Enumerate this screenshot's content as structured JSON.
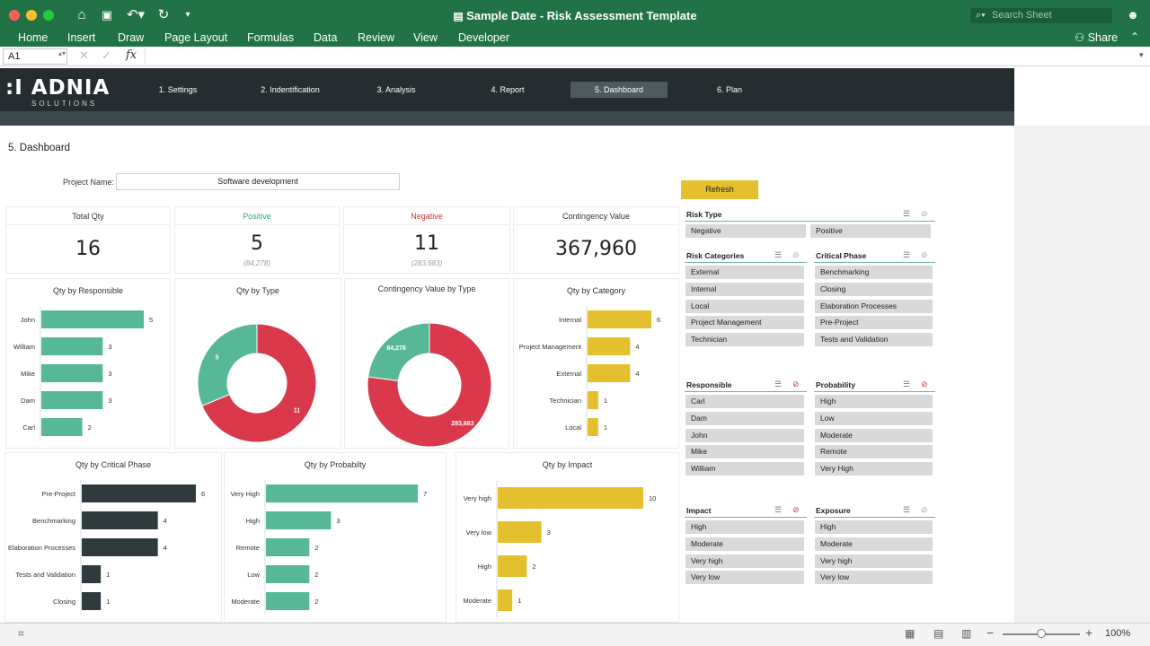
{
  "window": {
    "title": "Sample Date - Risk Assessment Template",
    "search_placeholder": "Search Sheet",
    "share_label": "Share"
  },
  "ribbon": {
    "tabs": [
      "Home",
      "Insert",
      "Draw",
      "Page Layout",
      "Formulas",
      "Data",
      "Review",
      "View",
      "Developer"
    ]
  },
  "formula_bar": {
    "cell_ref": "A1",
    "fx": "fx",
    "content": ""
  },
  "banner": {
    "logo": ":I ADNIA",
    "logo_sub": "SOLUTIONS",
    "tabs": [
      "1. Settings",
      "2. Indentification",
      "3. Analysis",
      "4. Report",
      "5. Dashboard",
      "6. Plan"
    ],
    "active_tab": "5. Dashboard"
  },
  "page": {
    "heading": "5. Dashboard",
    "project_label": "Project Name:",
    "project_name": "Software development",
    "refresh_label": "Refresh"
  },
  "kpis": {
    "total": {
      "title": "Total Qty",
      "value": "16"
    },
    "positive": {
      "title": "Positive",
      "value": "5",
      "sub": "(84,278)",
      "color": "#3aa57c"
    },
    "negative": {
      "title": "Negative",
      "value": "11",
      "sub": "(283,683)",
      "color": "#c0392b"
    },
    "contingency": {
      "title": "Contingency Value",
      "value": "367,960"
    }
  },
  "colors": {
    "teal": "#56b896",
    "red": "#d9394b",
    "dark": "#2e3a3c",
    "yellow": "#e5c02e",
    "excel_green": "#217346"
  },
  "chart_data": [
    {
      "id": "responsible",
      "type": "bar",
      "title": "Qty by Responsible",
      "categories": [
        "John",
        "William",
        "Mike",
        "Dam",
        "Carl"
      ],
      "values": [
        5,
        3,
        3,
        3,
        2
      ],
      "color": "#56b896"
    },
    {
      "id": "type",
      "type": "pie",
      "title": "Qty by Type",
      "labels": [
        "Positive",
        "Negative"
      ],
      "values": [
        5,
        11
      ],
      "value_labels": [
        "5",
        "11"
      ],
      "colors": [
        "#56b896",
        "#d9394b"
      ]
    },
    {
      "id": "contingency",
      "type": "pie",
      "title": "Contingency Value by Type",
      "labels": [
        "Positive",
        "Negative"
      ],
      "values": [
        84278,
        283683
      ],
      "value_labels": [
        "84,278",
        "283,683"
      ],
      "colors": [
        "#56b896",
        "#d9394b"
      ]
    },
    {
      "id": "category",
      "type": "bar",
      "title": "Qty by Category",
      "categories": [
        "Internal",
        "Project Management",
        "External",
        "Technician",
        "Local"
      ],
      "values": [
        6,
        4,
        4,
        1,
        1
      ],
      "color": "#e5c02e"
    },
    {
      "id": "phase",
      "type": "bar",
      "title": "Qty by Critical Phase",
      "categories": [
        "Pre-Project",
        "Benchmarking",
        "Elaboration Processes",
        "Tests and Validation",
        "Closing"
      ],
      "values": [
        6,
        4,
        4,
        1,
        1
      ],
      "color": "#2e3a3c"
    },
    {
      "id": "probability",
      "type": "bar",
      "title": "Qty by Probabilty",
      "categories": [
        "Very High",
        "High",
        "Remote",
        "Low",
        "Moderate"
      ],
      "values": [
        7,
        3,
        2,
        2,
        2
      ],
      "color": "#56b896"
    },
    {
      "id": "impact",
      "type": "bar",
      "title": "Qty by Impact",
      "categories": [
        "Very high",
        "Very low",
        "High",
        "Moderate"
      ],
      "values": [
        10,
        3,
        2,
        1
      ],
      "color": "#e5c02e"
    }
  ],
  "slicers": {
    "risk_type": {
      "title": "Risk Type",
      "items": [
        "Negative",
        "Positive"
      ]
    },
    "risk_categories": {
      "title": "Risk Categories",
      "items": [
        "External",
        "Internal",
        "Local",
        "Project Management",
        "Technician"
      ]
    },
    "critical_phase": {
      "title": "Critical Phase",
      "items": [
        "Benchmarking",
        "Closing",
        "Elaboration Processes",
        "Pre-Project",
        "Tests and Validation"
      ]
    },
    "responsible": {
      "title": "Responsible",
      "items": [
        "Carl",
        "Dam",
        "John",
        "Mike",
        "William"
      ]
    },
    "probability": {
      "title": "Probability",
      "items": [
        "High",
        "Low",
        "Moderate",
        "Remote",
        "Very High"
      ]
    },
    "impact": {
      "title": "Impact",
      "items": [
        "High",
        "Moderate",
        "Very high",
        "Very low"
      ]
    },
    "exposure": {
      "title": "Exposure",
      "items": [
        "High",
        "Moderate",
        "Very high",
        "Very low"
      ]
    }
  },
  "status": {
    "zoom": "100%"
  }
}
